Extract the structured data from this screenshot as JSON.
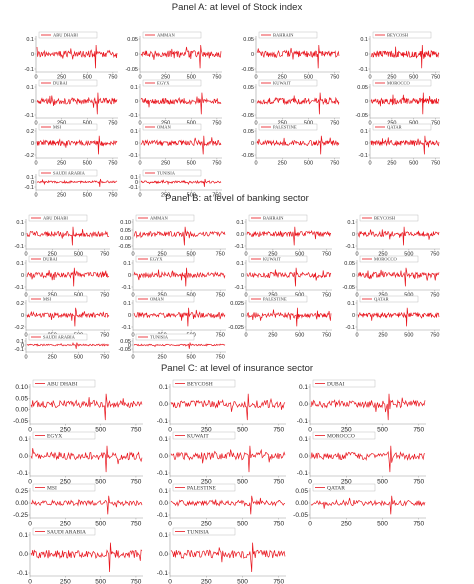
{
  "panels": [
    {
      "title": "Panel A: at level of Stock index",
      "x_ticks": [
        "0",
        "250",
        "500",
        "750"
      ],
      "charts": [
        {
          "legend": "ABU DHABI",
          "y_ticks": [
            "0.1",
            "0",
            "-0.1"
          ]
        },
        {
          "legend": "AMMAN",
          "y_ticks": [
            "0.05",
            "0",
            "-0.05"
          ]
        },
        {
          "legend": "BAHRAIN",
          "y_ticks": [
            "0.05",
            "0",
            "-0.05"
          ]
        },
        {
          "legend": "BEYCOSH",
          "y_ticks": [
            "0.1",
            "0",
            "-0.1"
          ]
        },
        {
          "legend": "DUBAI",
          "y_ticks": [
            "0.1",
            "0",
            "-0.1"
          ]
        },
        {
          "legend": "EGYX",
          "y_ticks": [
            "0.1",
            "0",
            "-0.1"
          ]
        },
        {
          "legend": "KUWAIT",
          "y_ticks": [
            "0.05",
            "0",
            "-0.05"
          ]
        },
        {
          "legend": "MOROCCO",
          "y_ticks": [
            "0.05",
            "0",
            "-0.05"
          ]
        },
        {
          "legend": "MSI",
          "y_ticks": [
            "0.2",
            "0",
            "-0.2"
          ]
        },
        {
          "legend": "OMAN",
          "y_ticks": [
            "0.1",
            "0",
            "-0.1"
          ]
        },
        {
          "legend": "PALESTINE",
          "y_ticks": [
            "0.05",
            "0",
            "-0.05"
          ]
        },
        {
          "legend": "QATAR",
          "y_ticks": [
            "0.1",
            "0",
            "-0.1"
          ]
        },
        {
          "legend": "SAUDI ARABIA",
          "y_ticks": [
            "0.1",
            "0",
            "-0.1"
          ]
        },
        {
          "legend": "TUNISIA",
          "y_ticks": [
            "0.1",
            "0",
            "-0.1"
          ]
        }
      ]
    },
    {
      "title": "Panel B: at level of banking sector",
      "x_ticks": [
        "0",
        "250",
        "500",
        "750"
      ],
      "charts": [
        {
          "legend": "ABU DHABI",
          "y_ticks": [
            "0.1",
            "0",
            "-0.1"
          ]
        },
        {
          "legend": "AMMAN",
          "y_ticks": [
            "0.10",
            "0.05",
            "0.00",
            "-0.05"
          ]
        },
        {
          "legend": "BAHRAIN",
          "y_ticks": [
            "0.1",
            "0.0",
            "-0.1"
          ]
        },
        {
          "legend": "BEYCOSH",
          "y_ticks": [
            "0.1",
            "0",
            "-0.1"
          ]
        },
        {
          "legend": "DUBAI",
          "y_ticks": [
            "0.1",
            "0",
            "-0.1"
          ]
        },
        {
          "legend": "EGYX",
          "y_ticks": [
            "0.1",
            "0",
            "-0.1"
          ]
        },
        {
          "legend": "KUWAIT",
          "y_ticks": [
            "0.1",
            "0",
            "-0.1"
          ]
        },
        {
          "legend": "MOROCCO",
          "y_ticks": [
            "0.05",
            "0",
            "-0.05"
          ]
        },
        {
          "legend": "MSI",
          "y_ticks": [
            "0.2",
            "0",
            "-0.2"
          ]
        },
        {
          "legend": "OMAN",
          "y_ticks": [
            "0.1",
            "0",
            "-0.1"
          ]
        },
        {
          "legend": "PALESTINE",
          "y_ticks": [
            "0.025",
            "0",
            "-0.025"
          ]
        },
        {
          "legend": "QATAR",
          "y_ticks": [
            "0.1",
            "0",
            "-0.1"
          ]
        },
        {
          "legend": "SAUDI ARABIA",
          "y_ticks": [
            "0.1",
            "0",
            "-0.1"
          ]
        },
        {
          "legend": "TUNISIA",
          "y_ticks": [
            "0.05",
            "0",
            "-0.05"
          ]
        }
      ]
    },
    {
      "title": "Panel C: at level of insurance sector",
      "x_ticks": [
        "0",
        "250",
        "500",
        "750"
      ],
      "charts": [
        {
          "legend": "ABU DHABI",
          "y_ticks": [
            "0.10",
            "0.05",
            "0.00",
            "-0.05"
          ]
        },
        {
          "legend": "BEYCOSH",
          "y_ticks": [
            "0.1",
            "0.0",
            "-0.1"
          ]
        },
        {
          "legend": "DUBAI",
          "y_ticks": [
            "0.1",
            "0.0",
            "-0.1"
          ]
        },
        {
          "legend": "EGYX",
          "y_ticks": [
            "0.1",
            "0.0",
            "-0.1"
          ]
        },
        {
          "legend": "KUWAIT",
          "y_ticks": [
            "0.1",
            "0.0",
            "-0.1"
          ]
        },
        {
          "legend": "MOROCCO",
          "y_ticks": [
            "0.1",
            "0.0",
            "-0.1"
          ]
        },
        {
          "legend": "MSI",
          "y_ticks": [
            "0.25",
            "0.00",
            "-0.25"
          ]
        },
        {
          "legend": "PALESTINE",
          "y_ticks": [
            "0.1",
            "0.0",
            "-0.1"
          ]
        },
        {
          "legend": "QATAR",
          "y_ticks": [
            "0.05",
            "0.00",
            "-0.05"
          ]
        },
        {
          "legend": "SAUDI ARABIA",
          "y_ticks": [
            "0.1",
            "0.0",
            "-0.1"
          ]
        },
        {
          "legend": "TUNISIA",
          "y_ticks": [
            "0.1",
            "0.0",
            "-0.1"
          ]
        }
      ]
    }
  ],
  "colors": {
    "series": "#e8141c",
    "axis": "#9a9a9a",
    "title": "#2a2a2a"
  },
  "chart_data": {
    "type": "line",
    "x_range": [
      0,
      800
    ],
    "n_points": 130,
    "grid": false,
    "legend_placement": "top-left",
    "description_of_series": "daily return series per market, x axis observation index 0-800"
  }
}
